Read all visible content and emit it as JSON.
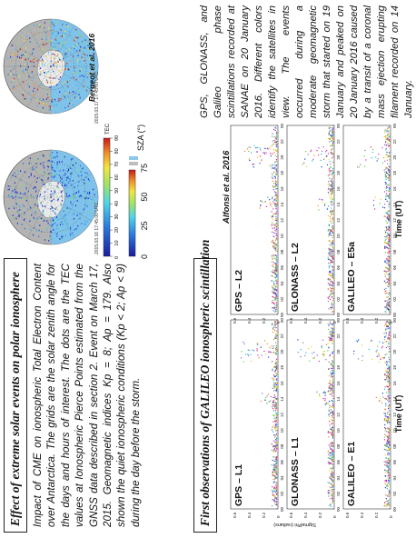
{
  "section1": {
    "title": "Effect of extreme solar events on polar ionosphere",
    "paragraph": "Impact of CME on ionospheric Total Electron Content over Antarctica. The grids are the solar zenith angle for the days and hours of interest. The dots are the TEC values at Ionospheric Pierce Points estimated from the GNSS data described in section 2. Event on March 17, 2015. Geomagnetic indices Kp = 8; Ap = 179. Also shown the quiet ionospheric conditions (Kp < 2; Ap < 9) during the day before the storm.",
    "credit": "Bergeot et al. 2016",
    "maps": [
      {
        "caption": "2015.03.16 17:45:00 UTC"
      },
      {
        "caption": "2015.03.17 17:45:00 UTC"
      }
    ],
    "tec_scale": {
      "title": "TEC",
      "ticks": [
        "0",
        "10",
        "20",
        "30",
        "40",
        "50",
        "60",
        "70",
        "80",
        "90"
      ]
    },
    "sza_scale": {
      "title": "SZA (°)",
      "ticks": [
        "0",
        "25",
        "50",
        "75"
      ]
    }
  },
  "section2": {
    "title": "First observations of GALILEO ionospheric scintillation",
    "paragraph": "GPS, GLONASS, and Galileo phase scintillations recorded at SANAE on 20 January 2016. Different colors identify the satellites in view. The events occurred during a moderate geomagnetic storm that started on 19 January and peaked on 20 January 2016 caused by a transit of a coronal mass ejection erupting filament recorded on 14 January.",
    "credit": "Alfonsi et al. 2016",
    "ylabel": "SigmaPhi (radians)",
    "xlabel": "Time (UT)",
    "yticks": [
      "0",
      "0.2",
      "0.4",
      "0.6"
    ],
    "xticks": [
      "00",
      "02",
      "04",
      "06",
      "08",
      "10",
      "12",
      "14",
      "16",
      "18",
      "20",
      "22",
      "00"
    ],
    "panels": [
      {
        "label": "GPS – L1"
      },
      {
        "label": "GPS – L2"
      },
      {
        "label": "GLONASS – L1"
      },
      {
        "label": "GLONASS – L2"
      },
      {
        "label": "GALILEO – E1"
      },
      {
        "label": "GALILEO – E5a"
      }
    ]
  }
}
